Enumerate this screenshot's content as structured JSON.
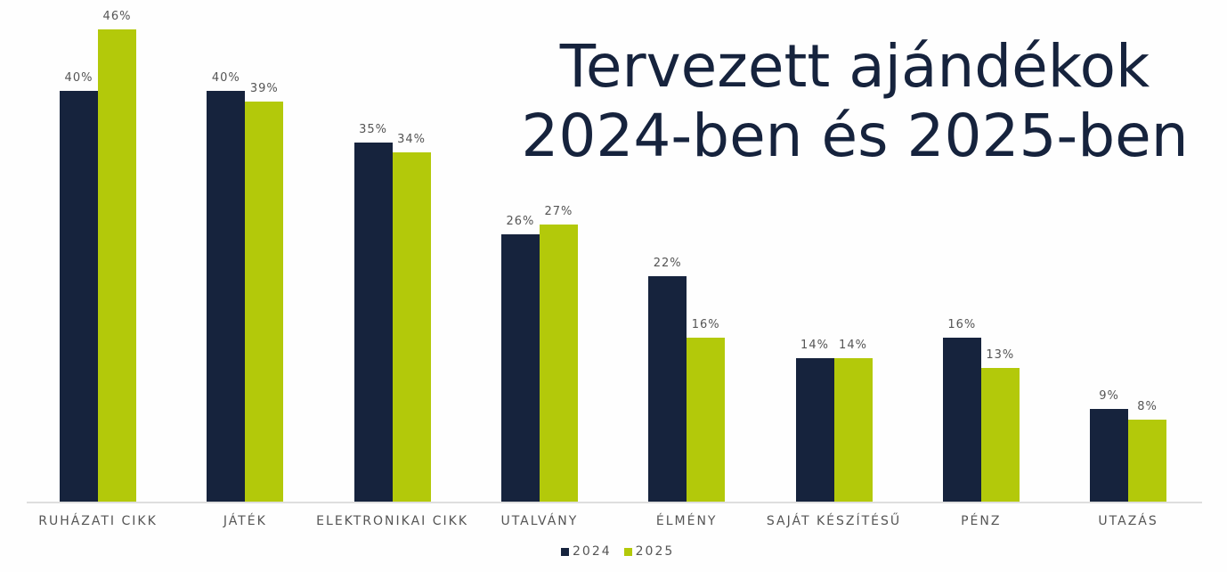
{
  "chart_data": {
    "type": "bar",
    "title": "Tervezett ajándékok 2024-ben és 2025-ben",
    "title_lines": [
      "Tervezett ajándékok",
      "2024-ben és 2025-ben"
    ],
    "categories": [
      "RUHÁZATI CIKK",
      "JÁTÉK",
      "ELEKTRONIKAI CIKK",
      "UTALVÁNY",
      "ÉLMÉNY",
      "SAJÁT KÉSZÍTÉSŰ",
      "PÉNZ",
      "UTAZÁS"
    ],
    "series": [
      {
        "name": "2024",
        "color": "#16233d",
        "values": [
          40,
          40,
          35,
          26,
          22,
          14,
          16,
          9
        ]
      },
      {
        "name": "2025",
        "color": "#b3c90a",
        "values": [
          46,
          39,
          34,
          27,
          16,
          14,
          13,
          8
        ]
      }
    ],
    "value_format": "{v}%",
    "xlabel": "",
    "ylabel": "",
    "ylim": [
      0,
      46
    ],
    "grid": false,
    "legend_position": "bottom"
  }
}
